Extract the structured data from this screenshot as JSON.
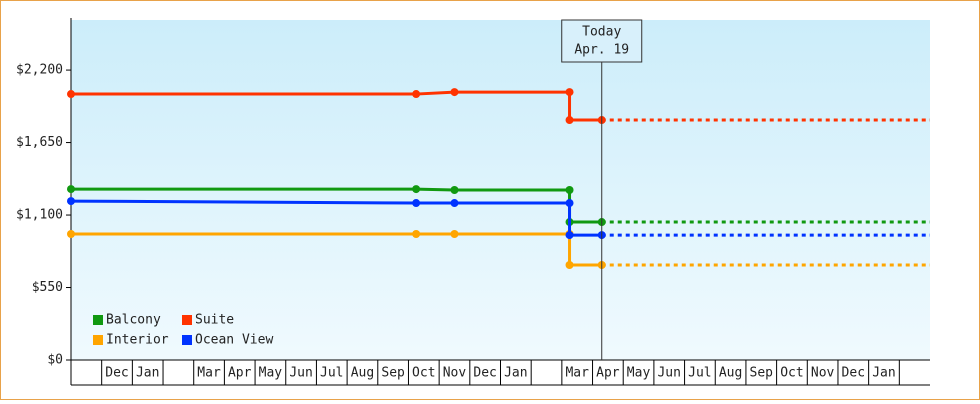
{
  "chart_data": {
    "type": "line",
    "categories": [
      null,
      "Dec",
      "Jan",
      null,
      "Mar",
      "Apr",
      "May",
      "Jun",
      "Jul",
      "Aug",
      "Sep",
      "Oct",
      "Nov",
      "Dec",
      "Jan",
      null,
      "Mar",
      "Apr",
      "May",
      "Jun",
      "Jul",
      "Aug",
      "Sep",
      "Oct",
      "Nov",
      "Dec",
      "Jan",
      null
    ],
    "xlim": [
      0,
      28
    ],
    "ylim": [
      0,
      2580
    ],
    "yticks": [
      {
        "value": 0,
        "label": "$0"
      },
      {
        "value": 550,
        "label": "$550"
      },
      {
        "value": 1100,
        "label": "$1,100"
      },
      {
        "value": 1650,
        "label": "$1,650"
      },
      {
        "value": 2200,
        "label": "$2,200"
      }
    ],
    "series": [
      {
        "name": "Balcony",
        "color": "#119911",
        "x": [
          0,
          11.25,
          12.5,
          16.25,
          16.25,
          17.3
        ],
        "values": [
          1297,
          1297,
          1290,
          1290,
          1047,
          1047
        ]
      },
      {
        "name": "Suite",
        "color": "#ff3300",
        "x": [
          0,
          11.25,
          12.5,
          16.25,
          16.25,
          17.3
        ],
        "values": [
          2018,
          2018,
          2033,
          2033,
          1821,
          1821
        ]
      },
      {
        "name": "Interior",
        "color": "#ffa500",
        "x": [
          0,
          11.25,
          12.5,
          16.25,
          16.25,
          17.3
        ],
        "values": [
          956,
          956,
          956,
          956,
          721,
          721
        ]
      },
      {
        "name": "Ocean View",
        "color": "#0033ff",
        "x": [
          0,
          11.25,
          12.5,
          16.25,
          16.25,
          17.3
        ],
        "values": [
          1206,
          1191,
          1191,
          1191,
          948,
          948
        ]
      }
    ],
    "today": {
      "x": 17.3,
      "label": "Today",
      "date": "Apr. 19"
    },
    "forecast_dashed": true,
    "legend": "lower left"
  }
}
